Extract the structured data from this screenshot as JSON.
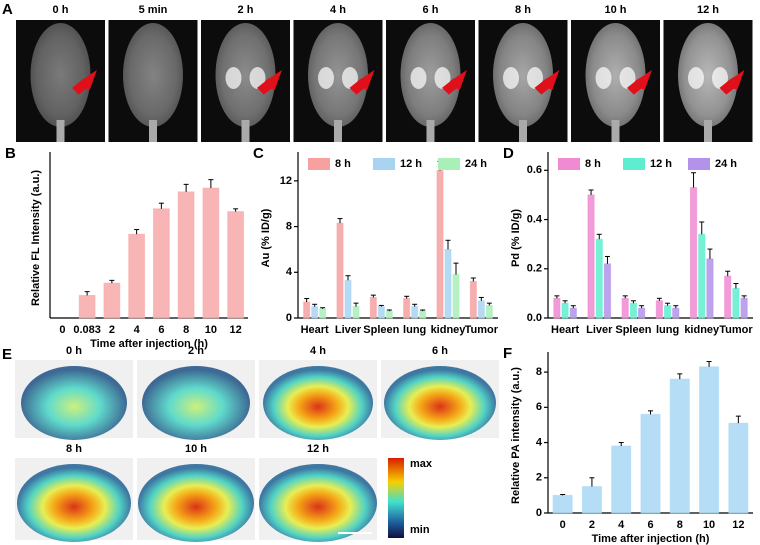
{
  "image_panels": {
    "A": {
      "letter": "A",
      "labels": [
        "0 h",
        "5 min",
        "2 h",
        "4 h",
        "6 h",
        "8 h",
        "10 h",
        "12 h"
      ]
    },
    "E": {
      "letter": "E",
      "labels": [
        "0 h",
        "2 h",
        "4 h",
        "6 h",
        "8 h",
        "10 h",
        "12 h"
      ],
      "colorbar": {
        "max": "max",
        "min": "min"
      }
    }
  },
  "chart_data": [
    {
      "type": "bar",
      "label": "B",
      "ylabel": "Relative FL Intensity (a.u.)",
      "xlabel": "Time after injection (h)",
      "categories": [
        "0",
        "0.083",
        "2",
        "4",
        "6",
        "8",
        "10",
        "12"
      ],
      "values": [
        0,
        24,
        37,
        89,
        116,
        134,
        138,
        113
      ],
      "errors": [
        0,
        4,
        3,
        5,
        6,
        8,
        9,
        3
      ],
      "color": "#f6a8a8",
      "ylim": [
        0,
        170
      ]
    },
    {
      "type": "bar",
      "label": "C",
      "ylabel": "Au (% ID/g)",
      "categories": [
        "Heart",
        "Liver",
        "Spleen",
        "lung",
        "kidney",
        "Tumor"
      ],
      "series": [
        {
          "name": "8 h",
          "color": "#f6a0a0",
          "values": [
            1.4,
            8.3,
            1.8,
            1.7,
            12.9,
            3.2
          ],
          "errors": [
            0.3,
            0.4,
            0.2,
            0.2,
            0.8,
            0.3
          ]
        },
        {
          "name": "12 h",
          "color": "#a8d4f2",
          "values": [
            1.0,
            3.3,
            1.0,
            1.0,
            6.0,
            1.5
          ],
          "errors": [
            0.2,
            0.4,
            0.1,
            0.2,
            0.8,
            0.3
          ]
        },
        {
          "name": "24 h",
          "color": "#a8efb8",
          "values": [
            0.8,
            1.0,
            0.6,
            0.6,
            3.8,
            1.1
          ],
          "errors": [
            0.1,
            0.3,
            0.1,
            0.1,
            1.0,
            0.2
          ]
        }
      ],
      "ylim": [
        0,
        14
      ],
      "yticks": [
        0,
        4,
        8,
        12
      ],
      "legend": "top"
    },
    {
      "type": "bar",
      "label": "D",
      "ylabel": "Pd (% ID/g)",
      "categories": [
        "Heart",
        "Liver",
        "Spleen",
        "lung",
        "kidney",
        "Tumor"
      ],
      "series": [
        {
          "name": "8 h",
          "color": "#f08ad2",
          "values": [
            0.08,
            0.5,
            0.08,
            0.07,
            0.53,
            0.17
          ],
          "errors": [
            0.01,
            0.02,
            0.01,
            0.01,
            0.06,
            0.02
          ]
        },
        {
          "name": "12 h",
          "color": "#5eeecf",
          "values": [
            0.06,
            0.32,
            0.06,
            0.05,
            0.34,
            0.12
          ],
          "errors": [
            0.01,
            0.02,
            0.01,
            0.01,
            0.05,
            0.02
          ]
        },
        {
          "name": "24 h",
          "color": "#b292ea",
          "values": [
            0.04,
            0.22,
            0.04,
            0.04,
            0.24,
            0.08
          ],
          "errors": [
            0.01,
            0.03,
            0.01,
            0.01,
            0.04,
            0.01
          ]
        }
      ],
      "ylim": [
        0,
        0.65
      ],
      "yticks": [
        {
          "value": 0,
          "label": "0.0"
        },
        0.2,
        0.4,
        0.6
      ],
      "legend": "top"
    },
    {
      "type": "bar",
      "label": "F",
      "ylabel": "Relative PA intensity (a.u.)",
      "xlabel": "Time after injection (h)",
      "categories": [
        "0",
        "2",
        "4",
        "6",
        "8",
        "10",
        "12"
      ],
      "values": [
        1.0,
        1.5,
        3.8,
        5.6,
        7.6,
        8.3,
        5.1
      ],
      "errors": [
        0.05,
        0.5,
        0.2,
        0.2,
        0.3,
        0.3,
        0.4
      ],
      "color": "#a8d8f5",
      "ylim": [
        0,
        8.8
      ],
      "yticks": [
        0,
        2,
        4,
        6,
        8
      ]
    }
  ]
}
